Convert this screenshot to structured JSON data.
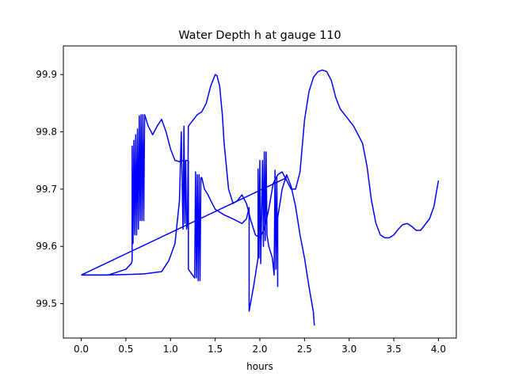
{
  "chart_data": {
    "type": "line",
    "title": "Water Depth h at gauge 110",
    "xlabel": "hours",
    "ylabel": "",
    "xlim": [
      -0.2,
      4.2
    ],
    "ylim": [
      99.44,
      99.95
    ],
    "xticks": [
      0.0,
      0.5,
      1.0,
      1.5,
      2.0,
      2.5,
      3.0,
      3.5,
      4.0
    ],
    "xtick_labels": [
      "0.0",
      "0.5",
      "1.0",
      "1.5",
      "2.0",
      "2.5",
      "3.0",
      "3.5",
      "4.0"
    ],
    "yticks": [
      99.5,
      99.6,
      99.7,
      99.8,
      99.9
    ],
    "ytick_labels": [
      "99.5",
      "99.6",
      "99.7",
      "99.8",
      "99.9"
    ],
    "grid": false,
    "line_color": "#0000ff",
    "series": [
      {
        "values": [
          [
            0.0,
            99.55
          ],
          [
            0.3,
            99.55
          ],
          [
            0.5,
            99.551
          ],
          [
            0.7,
            99.552
          ],
          [
            0.9,
            99.556
          ],
          [
            0.98,
            99.575
          ],
          [
            1.05,
            99.605
          ],
          [
            1.1,
            99.68
          ],
          [
            1.12,
            99.8
          ],
          [
            1.14,
            99.63
          ],
          [
            1.15,
            99.81
          ],
          [
            1.16,
            99.64
          ],
          [
            1.17,
            99.75
          ],
          [
            1.2,
            99.75
          ],
          [
            1.2,
            99.56
          ],
          [
            1.27,
            99.545
          ],
          [
            1.28,
            99.73
          ],
          [
            1.29,
            99.545
          ],
          [
            1.3,
            99.725
          ],
          [
            1.31,
            99.54
          ],
          [
            1.32,
            99.725
          ],
          [
            1.33,
            99.54
          ],
          [
            1.34,
            99.72
          ],
          [
            1.35,
            99.72
          ],
          [
            1.38,
            99.7
          ],
          [
            1.42,
            99.69
          ],
          [
            1.45,
            99.68
          ],
          [
            1.5,
            99.665
          ],
          [
            1.55,
            99.66
          ],
          [
            1.6,
            99.655
          ],
          [
            1.7,
            99.648
          ],
          [
            1.8,
            99.64
          ],
          [
            1.85,
            99.648
          ],
          [
            1.88,
            99.668
          ],
          [
            1.88,
            99.487
          ],
          [
            1.93,
            99.53
          ],
          [
            1.98,
            99.58
          ],
          [
            1.98,
            99.735
          ],
          [
            1.99,
            99.58
          ],
          [
            2.0,
            99.75
          ],
          [
            2.01,
            99.57
          ],
          [
            2.03,
            99.75
          ],
          [
            2.04,
            99.6
          ],
          [
            2.05,
            99.765
          ],
          [
            2.06,
            99.61
          ],
          [
            2.07,
            99.765
          ],
          [
            2.08,
            99.62
          ],
          [
            2.1,
            99.6
          ],
          [
            2.14,
            99.58
          ],
          [
            2.16,
            99.55
          ],
          [
            2.17,
            99.733
          ],
          [
            2.18,
            99.56
          ],
          [
            2.19,
            99.722
          ],
          [
            2.2,
            99.53
          ],
          [
            2.2,
            99.65
          ],
          [
            2.25,
            99.7
          ],
          [
            2.3,
            99.725
          ],
          [
            2.35,
            99.705
          ],
          [
            2.4,
            99.67
          ],
          [
            2.45,
            99.62
          ],
          [
            2.5,
            99.58
          ],
          [
            2.55,
            99.53
          ],
          [
            2.6,
            99.485
          ],
          [
            2.61,
            99.462
          ]
        ]
      },
      {
        "values": [
          [
            0.0,
            99.55
          ],
          [
            0.3,
            99.55
          ],
          [
            0.5,
            99.56
          ],
          [
            0.56,
            99.57
          ],
          [
            0.57,
            99.575
          ],
          [
            0.57,
            99.775
          ],
          [
            0.58,
            99.605
          ],
          [
            0.59,
            99.785
          ],
          [
            0.6,
            99.62
          ],
          [
            0.61,
            99.795
          ],
          [
            0.62,
            99.62
          ],
          [
            0.63,
            99.805
          ],
          [
            0.64,
            99.63
          ],
          [
            0.65,
            99.828
          ],
          [
            0.66,
            99.645
          ],
          [
            0.67,
            99.83
          ],
          [
            0.68,
            99.645
          ],
          [
            0.69,
            99.83
          ],
          [
            0.7,
            99.645
          ],
          [
            0.71,
            99.83
          ],
          [
            0.75,
            99.81
          ],
          [
            0.8,
            99.795
          ],
          [
            0.85,
            99.81
          ],
          [
            0.9,
            99.822
          ],
          [
            0.95,
            99.8
          ],
          [
            1.0,
            99.77
          ],
          [
            1.05,
            99.75
          ],
          [
            1.1,
            99.748
          ],
          [
            1.15,
            99.75
          ],
          [
            1.17,
            99.745
          ],
          [
            1.18,
            99.63
          ],
          [
            1.19,
            99.64
          ],
          [
            1.2,
            99.81
          ],
          [
            1.25,
            99.82
          ],
          [
            1.3,
            99.83
          ],
          [
            1.35,
            99.835
          ],
          [
            1.4,
            99.85
          ],
          [
            1.45,
            99.88
          ],
          [
            1.5,
            99.9
          ],
          [
            1.52,
            99.898
          ],
          [
            1.55,
            99.88
          ],
          [
            1.58,
            99.83
          ],
          [
            1.6,
            99.78
          ],
          [
            1.65,
            99.7
          ],
          [
            1.7,
            99.675
          ],
          [
            1.75,
            99.68
          ],
          [
            1.8,
            99.69
          ],
          [
            1.85,
            99.675
          ],
          [
            1.9,
            99.645
          ],
          [
            1.95,
            99.62
          ],
          [
            2.0,
            99.615
          ],
          [
            2.05,
            99.63
          ],
          [
            2.1,
            99.665
          ],
          [
            2.15,
            99.71
          ],
          [
            2.2,
            99.725
          ],
          [
            2.25,
            99.73
          ],
          [
            2.3,
            99.715
          ],
          [
            2.35,
            99.7
          ],
          [
            2.4,
            99.7
          ],
          [
            2.45,
            99.73
          ],
          [
            2.5,
            99.82
          ],
          [
            2.55,
            99.87
          ],
          [
            2.6,
            99.895
          ],
          [
            2.65,
            99.905
          ],
          [
            2.7,
            99.908
          ],
          [
            2.75,
            99.905
          ],
          [
            2.8,
            99.89
          ],
          [
            2.85,
            99.86
          ],
          [
            2.9,
            99.84
          ],
          [
            2.95,
            99.83
          ],
          [
            3.0,
            99.82
          ],
          [
            3.05,
            99.81
          ],
          [
            3.1,
            99.795
          ],
          [
            3.15,
            99.78
          ],
          [
            3.2,
            99.74
          ],
          [
            3.25,
            99.68
          ],
          [
            3.3,
            99.64
          ],
          [
            3.35,
            99.62
          ],
          [
            3.4,
            99.615
          ],
          [
            3.45,
            99.615
          ],
          [
            3.5,
            99.62
          ],
          [
            3.55,
            99.63
          ],
          [
            3.6,
            99.638
          ],
          [
            3.65,
            99.64
          ],
          [
            3.7,
            99.635
          ],
          [
            3.75,
            99.628
          ],
          [
            3.8,
            99.628
          ],
          [
            3.85,
            99.638
          ],
          [
            3.9,
            99.648
          ],
          [
            3.95,
            99.67
          ],
          [
            4.0,
            99.715
          ]
        ]
      },
      {
        "values": [
          [
            0.0,
            99.55
          ],
          [
            2.3,
            99.72
          ]
        ]
      }
    ]
  }
}
